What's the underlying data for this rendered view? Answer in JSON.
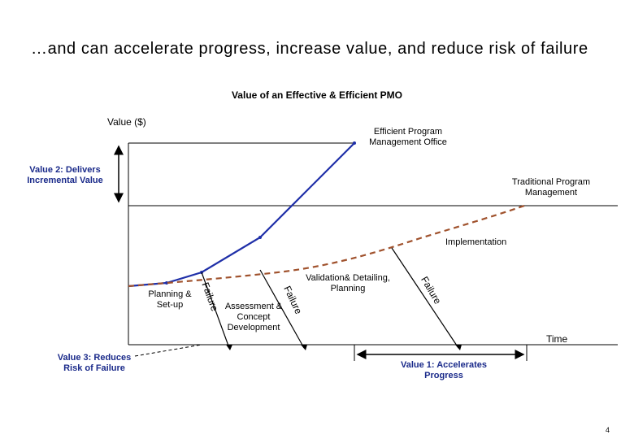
{
  "title": "…and can accelerate progress, increase value, and reduce risk of failure",
  "subtitle": "Value of an Effective & Efficient PMO",
  "axis": {
    "y_label": "Value ($)",
    "x_label": "Time"
  },
  "labels": {
    "efficient_pmo": "Efficient Program Management Office",
    "traditional_pm": "Traditional Program Management",
    "implementation": "Implementation",
    "planning_setup": "Planning & Set-up",
    "assessment": "Assessment & Concept Development",
    "validation": "Validation& Detailing, Planning",
    "failure_1": "Failure",
    "failure_2": "Failure",
    "failure_3": "Failure"
  },
  "values": {
    "value1": "Value 1: Accelerates Progress",
    "value2": "Value 2: Delivers Incremental Value",
    "value3": "Value 3: Reduces Risk of Failure"
  },
  "colors": {
    "efficient": "#1f2fa8",
    "traditional": "#a0522d"
  },
  "page_number": "4"
}
